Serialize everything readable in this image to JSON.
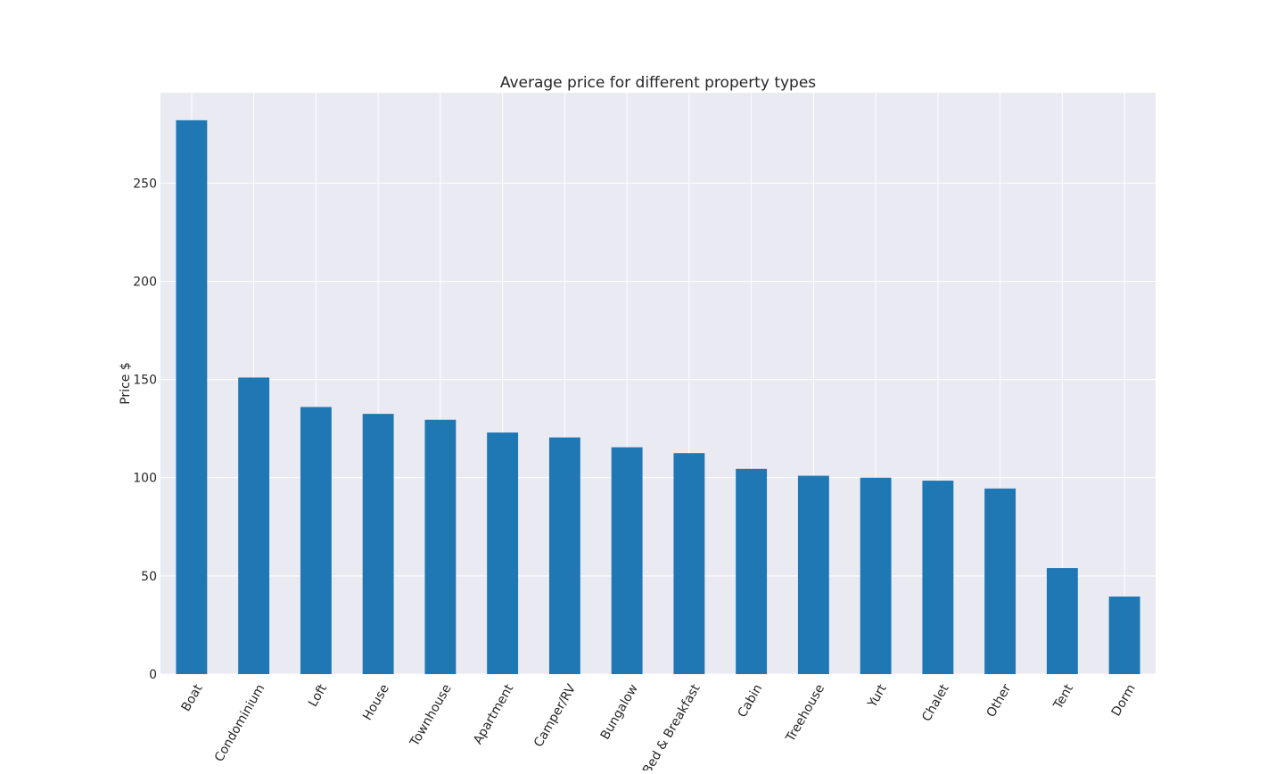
{
  "chart_data": {
    "type": "bar",
    "title": "Average price for different property types",
    "xlabel": "",
    "ylabel": "Price $",
    "categories": [
      "Boat",
      "Condominium",
      "Loft",
      "House",
      "Townhouse",
      "Apartment",
      "Camper/RV",
      "Bungalow",
      "Bed & Breakfast",
      "Cabin",
      "Treehouse",
      "Yurt",
      "Chalet",
      "Other",
      "Tent",
      "Dorm"
    ],
    "values": [
      282,
      151,
      136,
      132.5,
      129.5,
      123,
      120.5,
      115.5,
      112.5,
      104.5,
      101,
      100,
      98.5,
      94.5,
      54,
      39.5
    ],
    "yticks": [
      0,
      50,
      100,
      150,
      200,
      250
    ],
    "ylim": [
      0,
      296
    ],
    "grid": true,
    "colors": {
      "bar": "#1f77b4",
      "plot_background": "#eaeaf2",
      "grid": "#ffffff"
    }
  }
}
